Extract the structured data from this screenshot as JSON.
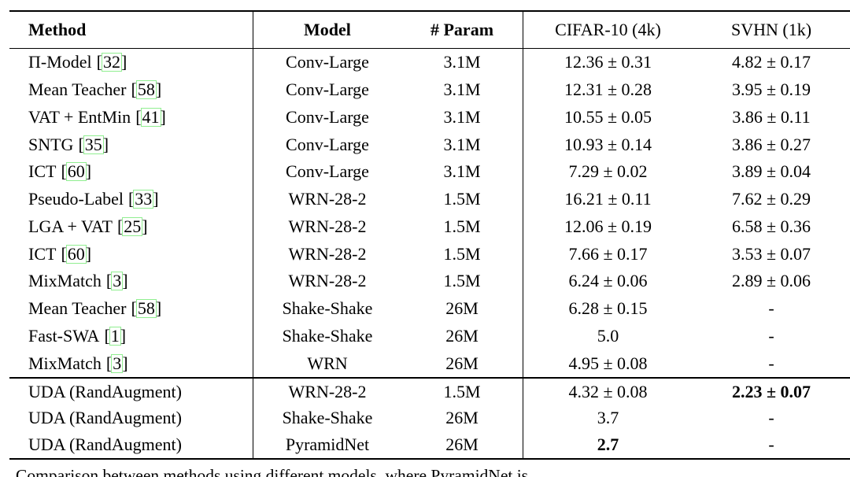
{
  "table": {
    "columns": [
      {
        "key": "method",
        "label": "Method"
      },
      {
        "key": "model",
        "label": "Model"
      },
      {
        "key": "param",
        "label": "# Param"
      },
      {
        "key": "cifar",
        "label": "CIFAR-10 (4k)"
      },
      {
        "key": "svhn",
        "label": "SVHN (1k)"
      }
    ],
    "sections": [
      {
        "rows": [
          {
            "method": "Π-Model",
            "cite": "32",
            "model": "Conv-Large",
            "param": "3.1M",
            "cifar": "12.36 ± 0.31",
            "svhn": "4.82 ± 0.17"
          },
          {
            "method": "Mean Teacher",
            "cite": "58",
            "model": "Conv-Large",
            "param": "3.1M",
            "cifar": "12.31 ± 0.28",
            "svhn": "3.95 ± 0.19"
          },
          {
            "method": "VAT + EntMin",
            "cite": "41",
            "model": "Conv-Large",
            "param": "3.1M",
            "cifar": "10.55 ± 0.05",
            "svhn": "3.86 ± 0.11"
          },
          {
            "method": "SNTG",
            "cite": "35",
            "model": "Conv-Large",
            "param": "3.1M",
            "cifar": "10.93 ± 0.14",
            "svhn": "3.86 ± 0.27"
          },
          {
            "method": "ICT",
            "cite": "60",
            "model": "Conv-Large",
            "param": "3.1M",
            "cifar": "7.29 ± 0.02",
            "svhn": "3.89 ± 0.04"
          },
          {
            "method": "Pseudo-Label",
            "cite": "33",
            "model": "WRN-28-2",
            "param": "1.5M",
            "cifar": "16.21 ± 0.11",
            "svhn": "7.62 ± 0.29"
          },
          {
            "method": "LGA + VAT",
            "cite": "25",
            "model": "WRN-28-2",
            "param": "1.5M",
            "cifar": "12.06 ± 0.19",
            "svhn": "6.58 ± 0.36"
          },
          {
            "method": "ICT",
            "cite": "60",
            "model": "WRN-28-2",
            "param": "1.5M",
            "cifar": "7.66 ± 0.17",
            "svhn": "3.53 ± 0.07"
          },
          {
            "method": "MixMatch",
            "cite": "3",
            "model": "WRN-28-2",
            "param": "1.5M",
            "cifar": "6.24 ± 0.06",
            "svhn": "2.89 ± 0.06"
          },
          {
            "method": "Mean Teacher",
            "cite": "58",
            "model": "Shake-Shake",
            "param": "26M",
            "cifar": "6.28 ± 0.15",
            "svhn": "-"
          },
          {
            "method": "Fast-SWA",
            "cite": "1",
            "model": "Shake-Shake",
            "param": "26M",
            "cifar": "5.0",
            "svhn": "-"
          },
          {
            "method": "MixMatch",
            "cite": "3",
            "model": "WRN",
            "param": "26M",
            "cifar": "4.95 ± 0.08",
            "svhn": "-"
          }
        ]
      },
      {
        "rows": [
          {
            "method": "UDA (RandAugment)",
            "cite": null,
            "model": "WRN-28-2",
            "param": "1.5M",
            "cifar": "4.32 ± 0.08",
            "svhn": "2.23 ± 0.07",
            "svhn_bold": true
          },
          {
            "method": "UDA (RandAugment)",
            "cite": null,
            "model": "Shake-Shake",
            "param": "26M",
            "cifar": "3.7",
            "svhn": "-"
          },
          {
            "method": "UDA (RandAugment)",
            "cite": null,
            "model": "PyramidNet",
            "param": "26M",
            "cifar": "2.7",
            "cifar_bold": true,
            "svhn": "-"
          }
        ]
      }
    ]
  },
  "citation_format": {
    "open": "[",
    "close": "]"
  },
  "caption_fragment": "Comparison between methods using different models, where PyramidNet is",
  "colors": {
    "citation_box": "#90EE90",
    "text": "#000000",
    "background": "#ffffff"
  }
}
